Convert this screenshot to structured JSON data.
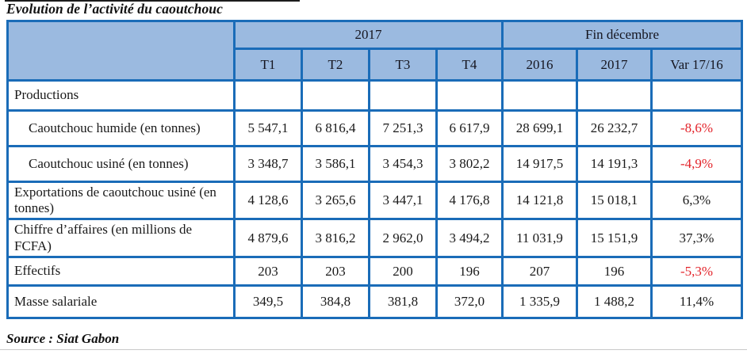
{
  "page": {
    "title": "Evolution de l’activité du caoutchouc",
    "source": "Source : Siat Gabon"
  },
  "colors": {
    "table_border": "#1a6cb8",
    "header_background": "#9bbae0",
    "negative_value": "#e3242b",
    "text": "#1a1a1a"
  },
  "table": {
    "header": {
      "group_2017": "2017",
      "group_fin_decembre": "Fin décembre",
      "quarters": [
        "T1",
        "T2",
        "T3",
        "T4"
      ],
      "year_2016": "2016",
      "year_2017": "2017",
      "var_label": "Var 17/16"
    },
    "rows": [
      {
        "label": "Productions",
        "indent": false,
        "values": [
          "",
          "",
          "",
          "",
          "",
          "",
          ""
        ]
      },
      {
        "label": "Caoutchouc humide (en tonnes)",
        "indent": true,
        "values": [
          "5 547,1",
          "6 816,4",
          "7 251,3",
          "6 617,9",
          "28 699,1",
          "26 232,7",
          "-8,6%"
        ]
      },
      {
        "label": "Caoutchouc usiné (en tonnes)",
        "indent": true,
        "values": [
          "3 348,7",
          "3 586,1",
          "3 454,3",
          "3 802,2",
          "14 917,5",
          "14 191,3",
          "-4,9%"
        ]
      },
      {
        "label": "Exportations de caoutchouc usiné (en tonnes)",
        "indent": false,
        "values": [
          "4 128,6",
          "3 265,6",
          "3 447,1",
          "4 176,8",
          "14 121,8",
          "15 018,1",
          "6,3%"
        ]
      },
      {
        "label": "Chiffre d’affaires (en millions de FCFA)",
        "indent": false,
        "values": [
          "4 879,6",
          "3 816,2",
          "2 962,0",
          "3 494,2",
          "11 031,9",
          "15 151,9",
          "37,3%"
        ]
      },
      {
        "label": "Effectifs",
        "indent": false,
        "values": [
          "203",
          "203",
          "200",
          "196",
          "207",
          "196",
          "-5,3%"
        ]
      },
      {
        "label": "Masse salariale",
        "indent": false,
        "values": [
          "349,5",
          "384,8",
          "381,8",
          "372,0",
          "1 335,9",
          "1 488,2",
          "11,4%"
        ]
      }
    ]
  }
}
